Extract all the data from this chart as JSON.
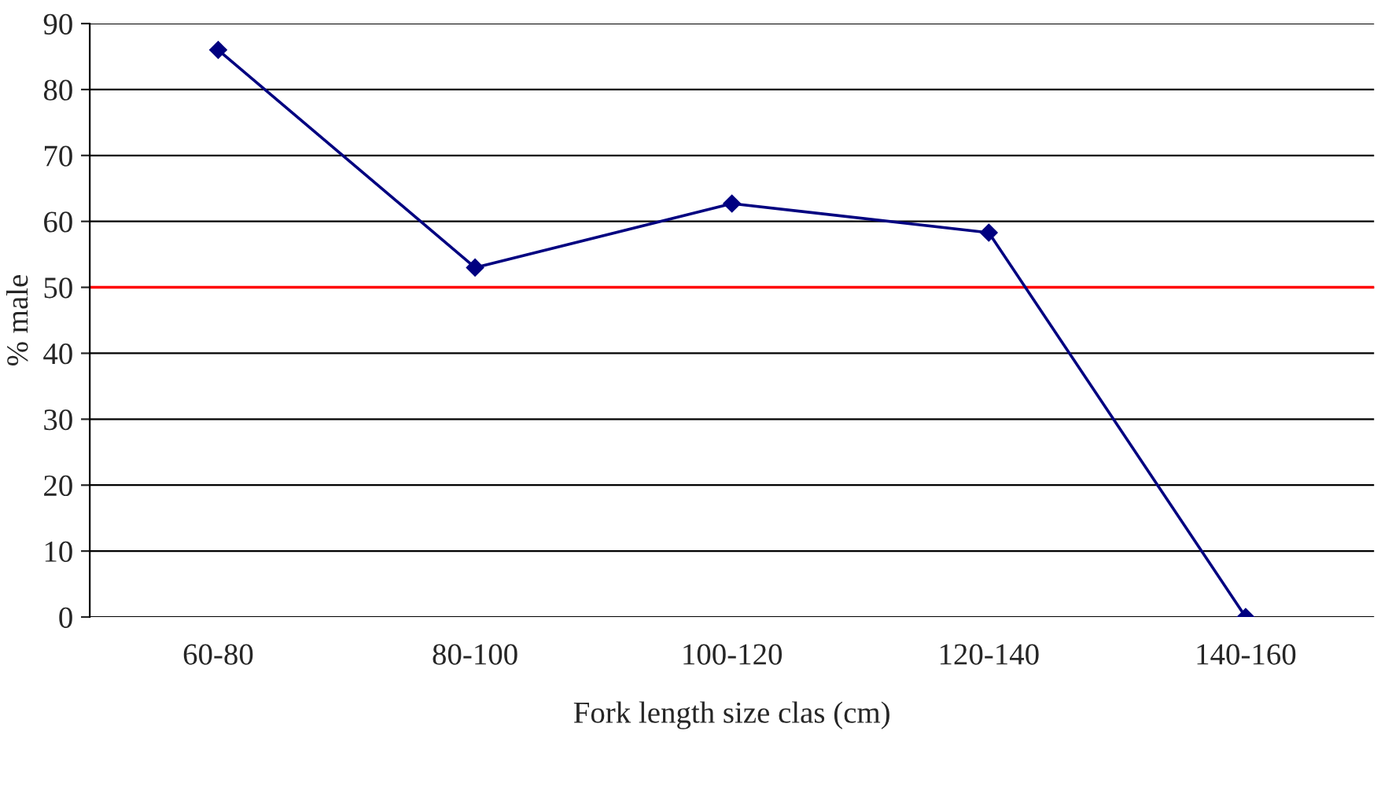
{
  "chart_data": {
    "type": "line",
    "xlabel": "Fork length size clas (cm)",
    "ylabel": "% male",
    "categories": [
      "60-80",
      "80-100",
      "100-120",
      "120-140",
      "140-160"
    ],
    "series": [
      {
        "color": "#000080",
        "values": [
          86,
          53,
          62.7,
          58.3,
          0
        ]
      }
    ],
    "ylim": [
      0,
      90
    ],
    "yticks": [
      0,
      10,
      20,
      30,
      40,
      50,
      60,
      70,
      80,
      90
    ],
    "ref_lines": [
      {
        "axis": "y",
        "value": 50,
        "color": "#ff0000"
      }
    ],
    "grid": "y",
    "marker": "diamond",
    "line_style": "solid",
    "legend": false
  }
}
